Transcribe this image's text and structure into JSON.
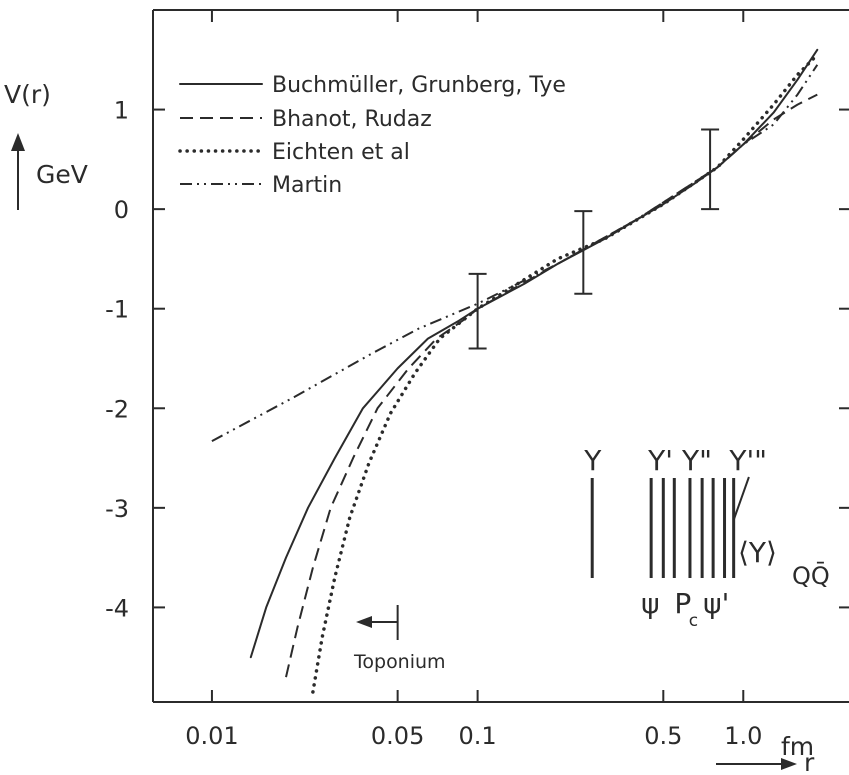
{
  "chart_data": {
    "type": "line",
    "y_axis_label": "V(r)",
    "y_axis_unit": "GeV",
    "x_axis_unit": "fm",
    "x_axis_label": "r",
    "x_scale": "log",
    "xlim": [
      0.006,
      2.5
    ],
    "ylim": [
      -4.95,
      2.0
    ],
    "x_ticks": [
      {
        "v": 0.01,
        "label": "0.01"
      },
      {
        "v": 0.05,
        "label": "0.05"
      },
      {
        "v": 0.1,
        "label": "0.1"
      },
      {
        "v": 0.5,
        "label": "0.5"
      },
      {
        "v": 1.0,
        "label": "1.0"
      }
    ],
    "y_ticks": [
      {
        "v": 1,
        "label": "1"
      },
      {
        "v": 0,
        "label": "0"
      },
      {
        "v": -1,
        "label": "-1"
      },
      {
        "v": -2,
        "label": "-2"
      },
      {
        "v": -3,
        "label": "-3"
      },
      {
        "v": -4,
        "label": "-4"
      }
    ],
    "series": [
      {
        "name": "Buchmüller, Grunberg, Tye",
        "style": "solid",
        "points": [
          [
            0.014,
            -4.5
          ],
          [
            0.016,
            -4.0
          ],
          [
            0.019,
            -3.5
          ],
          [
            0.023,
            -3.0
          ],
          [
            0.029,
            -2.5
          ],
          [
            0.037,
            -2.0
          ],
          [
            0.05,
            -1.6
          ],
          [
            0.065,
            -1.3
          ],
          [
            0.085,
            -1.12
          ],
          [
            0.1,
            -1.0
          ],
          [
            0.15,
            -0.75
          ],
          [
            0.2,
            -0.55
          ],
          [
            0.3,
            -0.3
          ],
          [
            0.4,
            -0.1
          ],
          [
            0.5,
            0.05
          ],
          [
            0.65,
            0.25
          ],
          [
            0.8,
            0.42
          ],
          [
            1.0,
            0.65
          ],
          [
            1.3,
            0.97
          ],
          [
            1.6,
            1.3
          ],
          [
            1.9,
            1.6
          ]
        ]
      },
      {
        "name": "Bhanot, Rudaz",
        "style": "dashed",
        "points": [
          [
            0.019,
            -4.7
          ],
          [
            0.021,
            -4.2
          ],
          [
            0.024,
            -3.6
          ],
          [
            0.028,
            -3.0
          ],
          [
            0.034,
            -2.5
          ],
          [
            0.042,
            -2.0
          ],
          [
            0.055,
            -1.6
          ],
          [
            0.07,
            -1.3
          ],
          [
            0.09,
            -1.1
          ],
          [
            0.1,
            -1.0
          ],
          [
            0.2,
            -0.55
          ],
          [
            0.4,
            -0.1
          ],
          [
            0.8,
            0.42
          ],
          [
            1.0,
            0.65
          ],
          [
            1.3,
            0.9
          ],
          [
            1.6,
            1.05
          ],
          [
            1.9,
            1.15
          ]
        ]
      },
      {
        "name": "Eichten et al",
        "style": "dotted",
        "points": [
          [
            0.024,
            -4.85
          ],
          [
            0.026,
            -4.3
          ],
          [
            0.029,
            -3.7
          ],
          [
            0.033,
            -3.1
          ],
          [
            0.039,
            -2.55
          ],
          [
            0.047,
            -2.05
          ],
          [
            0.058,
            -1.65
          ],
          [
            0.072,
            -1.3
          ],
          [
            0.1,
            -1.0
          ],
          [
            0.2,
            -0.5
          ],
          [
            0.3,
            -0.3
          ],
          [
            0.5,
            0.05
          ],
          [
            0.8,
            0.42
          ],
          [
            1.0,
            0.7
          ],
          [
            1.3,
            1.05
          ],
          [
            1.6,
            1.35
          ],
          [
            1.9,
            1.55
          ]
        ]
      },
      {
        "name": "Martin",
        "style": "dashdot",
        "points": [
          [
            0.01,
            -2.33
          ],
          [
            0.02,
            -1.9
          ],
          [
            0.04,
            -1.45
          ],
          [
            0.06,
            -1.2
          ],
          [
            0.1,
            -0.95
          ],
          [
            0.2,
            -0.55
          ],
          [
            0.4,
            -0.1
          ],
          [
            0.8,
            0.42
          ],
          [
            1.0,
            0.65
          ],
          [
            1.3,
            0.85
          ],
          [
            1.6,
            1.15
          ],
          [
            1.9,
            1.45
          ]
        ]
      }
    ],
    "error_bars": [
      {
        "x": 0.1,
        "y": -1.0,
        "low": -1.4,
        "high": -0.65
      },
      {
        "x": 0.25,
        "y": -0.42,
        "low": -0.85,
        "high": -0.02
      },
      {
        "x": 0.75,
        "y": 0.4,
        "low": 0.0,
        "high": 0.8
      }
    ],
    "toponium": {
      "label": "Toponium",
      "x": 0.05
    },
    "levels": {
      "top_labels": [
        "Υ",
        "Υ'",
        "Υ\"",
        "Υ'\""
      ],
      "bottom_labels": [
        "ψ",
        "P",
        "c",
        "ψ'"
      ],
      "side_label": "⟨Υ⟩",
      "side_subscript": "QQ̄",
      "line_x": [
        0.27,
        0.45,
        0.5,
        0.55,
        0.63,
        0.7,
        0.77,
        0.85,
        0.92
      ]
    },
    "legend_position": "top-left",
    "grid": false
  }
}
